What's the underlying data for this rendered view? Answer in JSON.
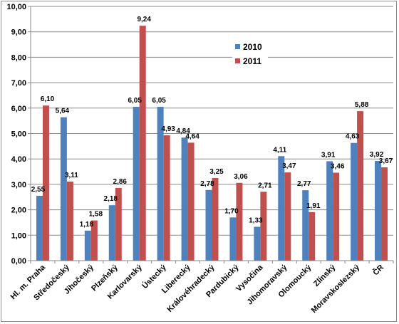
{
  "chart_data": {
    "type": "bar",
    "title": "",
    "xlabel": "",
    "ylabel": "",
    "ylim": [
      0,
      10
    ],
    "yticks": [
      "0,00",
      "1,00",
      "2,00",
      "3,00",
      "4,00",
      "5,00",
      "6,00",
      "7,00",
      "8,00",
      "9,00",
      "10,00"
    ],
    "categories": [
      "Hl. m. Praha",
      "Středočeský",
      "Jihočeský",
      "Plzeňský",
      "Karlovarský",
      "Ústecký",
      "Liberecký",
      "Královéhradecký",
      "Pardubický",
      "Vysočina",
      "Jihomoravský",
      "Olomoucký",
      "Zlínský",
      "Moravskoslezský",
      "ČR"
    ],
    "series": [
      {
        "name": "2010",
        "color": "#4F81BD",
        "values": [
          2.55,
          5.64,
          1.18,
          2.18,
          6.05,
          6.05,
          4.84,
          2.78,
          1.7,
          1.33,
          4.11,
          2.77,
          3.91,
          4.63,
          3.92
        ],
        "labels": [
          "2,55",
          "5,64",
          "1,18",
          "2,18",
          "6,05",
          "6,05",
          "4,84",
          "2,78",
          "1,70",
          "1,33",
          "4,11",
          "2,77",
          "3,91",
          "4,63",
          "3,92"
        ]
      },
      {
        "name": "2011",
        "color": "#C0504D",
        "values": [
          6.1,
          3.11,
          1.58,
          2.86,
          9.24,
          4.93,
          4.64,
          3.25,
          3.06,
          2.71,
          3.47,
          1.91,
          3.46,
          5.88,
          3.67
        ],
        "labels": [
          "6,10",
          "3,11",
          "1,58",
          "2,86",
          "9,24",
          "4,93",
          "4,64",
          "3,25",
          "3,06",
          "2,71",
          "3,47",
          "1,91",
          "3,46",
          "5,88",
          "3,67"
        ]
      }
    ],
    "grid": true,
    "legend": "top-right"
  }
}
